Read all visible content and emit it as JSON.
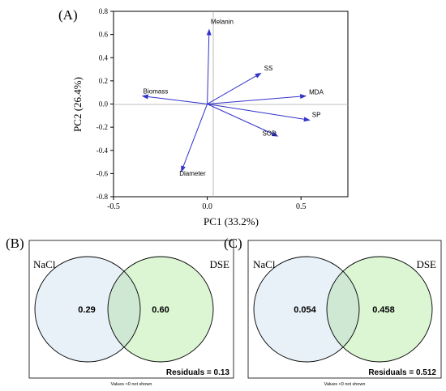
{
  "panels": {
    "a_label": "(A)",
    "b_label": "(B)",
    "c_label": "(C)"
  },
  "chart_data": [
    {
      "type": "biplot",
      "xlabel": "PC1 (33.2%)",
      "ylabel": "PC2 (26.4%)",
      "xlim": [
        -0.5,
        0.75
      ],
      "ylim": [
        -0.8,
        0.8
      ],
      "xticks": [
        "-0.5",
        "0.0",
        "0.5"
      ],
      "xtick_values": [
        -0.5,
        0.0,
        0.5
      ],
      "yticks": [
        "-0.8",
        "-0.6",
        "-0.4",
        "-0.2",
        "0.0",
        "0.2",
        "0.4",
        "0.6",
        "0.8"
      ],
      "ytick_values": [
        -0.8,
        -0.6,
        -0.4,
        -0.2,
        0.0,
        0.2,
        0.4,
        0.6,
        0.8
      ],
      "arrow_color": "#3333cc",
      "vectors": [
        {
          "name": "Melanin",
          "x": 0.01,
          "y": 0.65
        },
        {
          "name": "SS",
          "x": 0.29,
          "y": 0.27
        },
        {
          "name": "MDA",
          "x": 0.53,
          "y": 0.07
        },
        {
          "name": "Biomass",
          "x": -0.35,
          "y": 0.07
        },
        {
          "name": "SP",
          "x": 0.55,
          "y": -0.14
        },
        {
          "name": "SOD",
          "x": 0.38,
          "y": -0.28
        },
        {
          "name": "Diameter",
          "x": -0.14,
          "y": -0.59
        }
      ]
    },
    {
      "type": "venn",
      "sets": [
        "NaCl",
        "DSE"
      ],
      "values": {
        "NaCl_only": "0.29",
        "DSE_only": "0.60"
      },
      "residuals": "Residuals = 0.13",
      "note": "Values <0 not shown",
      "colors": {
        "NaCl": "#e8f1f8",
        "DSE": "#dcf6d4",
        "overlap": "#cfe8d4"
      }
    },
    {
      "type": "venn",
      "sets": [
        "NaCl",
        "DSE"
      ],
      "values": {
        "NaCl_only": "0.054",
        "DSE_only": "0.458"
      },
      "residuals": "Residuals = 0.512",
      "note": "Values <0 not shown",
      "colors": {
        "NaCl": "#e8f1f8",
        "DSE": "#dcf6d4",
        "overlap": "#cfe8d4"
      }
    }
  ]
}
